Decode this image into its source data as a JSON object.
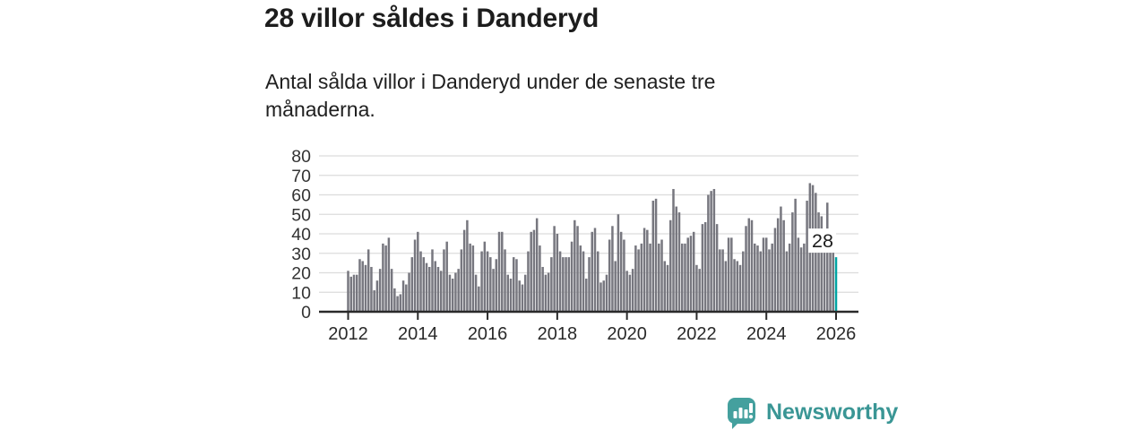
{
  "page": {
    "background": "#ffffff"
  },
  "header": {
    "title": "28 villor såldes i Danderyd",
    "subtitle": "Antal sålda villor i Danderyd under de senaste tre månaderna."
  },
  "branding": {
    "logo_text": "Newsworthy",
    "logo_icon": "newsworthy-speech-bubble-chart-icon",
    "text_color": "#3a9695",
    "icon_color": "#44a09e"
  },
  "chart_data": {
    "type": "bar",
    "title": "28 villor såldes i Danderyd",
    "subtitle": "Antal sålda villor i Danderyd under de senaste tre månaderna.",
    "xlabel": "",
    "ylabel": "",
    "ylim": [
      0,
      80
    ],
    "y_ticks": [
      0,
      10,
      20,
      30,
      40,
      50,
      60,
      70,
      80
    ],
    "x_tick_labels": [
      "2012",
      "2014",
      "2016",
      "2018",
      "2020",
      "2022",
      "2024",
      "2026"
    ],
    "grid": "horizontal",
    "legend": "none",
    "months_start": "2012-01",
    "months_end": "2026-01",
    "bar_color": "#77777f",
    "grid_color": "#dcdcdc",
    "axis_color": "#2a2a2a",
    "tick_label_color": "#333333",
    "values": [
      21,
      18,
      19,
      19,
      27,
      26,
      24,
      32,
      23,
      11,
      16,
      22,
      35,
      34,
      38,
      22,
      12,
      8,
      9,
      16,
      14,
      20,
      28,
      37,
      41,
      31,
      28,
      25,
      23,
      32,
      26,
      23,
      21,
      32,
      36,
      19,
      17,
      20,
      22,
      32,
      42,
      47,
      35,
      34,
      19,
      13,
      31,
      36,
      31,
      28,
      22,
      27,
      41,
      41,
      32,
      19,
      17,
      28,
      27,
      16,
      14,
      19,
      31,
      41,
      42,
      48,
      34,
      23,
      19,
      20,
      28,
      44,
      40,
      31,
      28,
      28,
      28,
      36,
      47,
      44,
      34,
      31,
      17,
      28,
      41,
      43,
      31,
      15,
      16,
      19,
      37,
      44,
      26,
      50,
      41,
      37,
      21,
      19,
      22,
      34,
      32,
      35,
      43,
      42,
      35,
      57,
      58,
      35,
      37,
      26,
      24,
      47,
      63,
      54,
      51,
      35,
      35,
      38,
      39,
      41,
      24,
      22,
      45,
      46,
      60,
      62,
      63,
      45,
      32,
      32,
      26,
      38,
      38,
      27,
      26,
      24,
      31,
      44,
      48,
      47,
      35,
      34,
      31,
      38,
      38,
      32,
      35,
      43,
      48,
      54,
      47,
      31,
      35,
      51,
      58,
      38,
      33,
      35,
      57,
      66,
      65,
      61,
      51,
      49,
      42,
      56,
      41,
      34,
      28
    ],
    "highlight_last": {
      "value": 28,
      "label": "28",
      "color": "#00a3a2"
    }
  }
}
